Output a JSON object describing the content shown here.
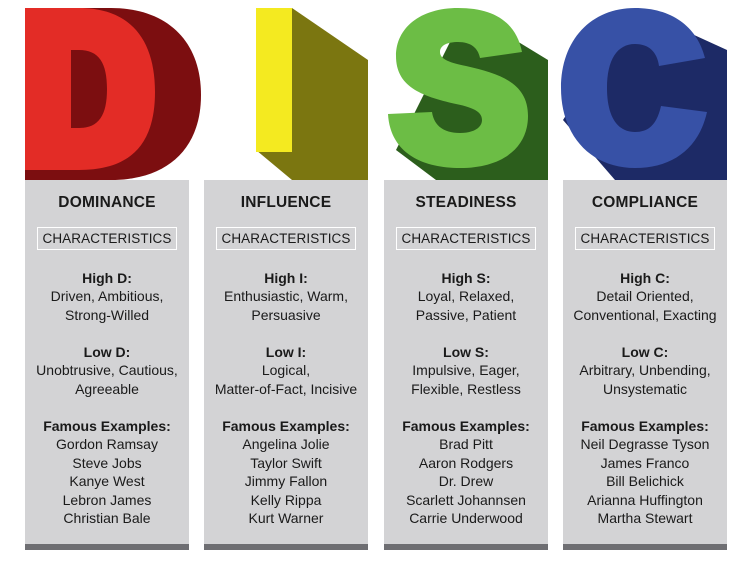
{
  "columns": [
    {
      "letter": "D",
      "title": "DOMINANCE",
      "characteristics_label": "CHARACTERISTICS",
      "high_title": "High D:",
      "high_text": [
        "Driven, Ambitious,",
        "Strong-Willed"
      ],
      "low_title": "Low D:",
      "low_text": [
        "Unobtrusive, Cautious,",
        "Agreeable"
      ],
      "examples_title": "Famous Examples:",
      "examples": [
        "Gordon Ramsay",
        "Steve Jobs",
        "Kanye West",
        "Lebron James",
        "Christian Bale"
      ],
      "colors": {
        "front": "#e32c26",
        "shadow": "#7c0e10"
      }
    },
    {
      "letter": "I",
      "title": "INFLUENCE",
      "characteristics_label": "CHARACTERISTICS",
      "high_title": "High I:",
      "high_text": [
        "Enthusiastic, Warm,",
        "Persuasive"
      ],
      "low_title": "Low I:",
      "low_text": [
        "Logical,",
        "Matter-of-Fact, Incisive"
      ],
      "examples_title": "Famous Examples:",
      "examples": [
        "Angelina Jolie",
        "Taylor Swift",
        "Jimmy Fallon",
        "Kelly Rippa",
        "Kurt Warner"
      ],
      "colors": {
        "front": "#f4ea20",
        "shadow": "#7b7610"
      }
    },
    {
      "letter": "S",
      "title": "STEADINESS",
      "characteristics_label": "CHARACTERISTICS",
      "high_title": "High S:",
      "high_text": [
        "Loyal, Relaxed,",
        "Passive, Patient"
      ],
      "low_title": "Low S:",
      "low_text": [
        "Impulsive, Eager,",
        "Flexible, Restless"
      ],
      "examples_title": "Famous Examples:",
      "examples": [
        "Brad Pitt",
        "Aaron Rodgers",
        "Dr. Drew",
        "Scarlett Johannsen",
        "Carrie Underwood"
      ],
      "colors": {
        "front": "#6cbd45",
        "shadow": "#2c5e1c"
      }
    },
    {
      "letter": "C",
      "title": "COMPLIANCE",
      "characteristics_label": "CHARACTERISTICS",
      "high_title": "High C:",
      "high_text": [
        "Detail Oriented,",
        "Conventional, Exacting"
      ],
      "low_title": "Low C:",
      "low_text": [
        "Arbitrary, Unbending,",
        "Unsystematic"
      ],
      "examples_title": "Famous Examples:",
      "examples": [
        "Neil Degrasse Tyson",
        "James Franco",
        "Bill Belichick",
        "Arianna Huffington",
        "Martha Stewart"
      ],
      "colors": {
        "front": "#3751a6",
        "shadow": "#1d2a66"
      }
    }
  ]
}
